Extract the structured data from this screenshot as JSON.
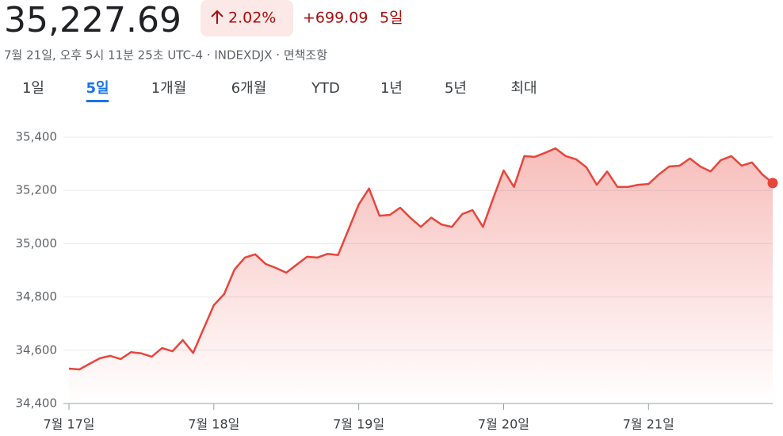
{
  "header": {
    "price": "35,227.69",
    "change_percent": "2.02%",
    "change_value": "+699.09",
    "period": "5일",
    "timestamp": "7월 21일, 오후 5시 11분 25초 UTC-4 · INDEXDJX · 면책조항"
  },
  "tabs": [
    "1일",
    "5일",
    "1개월",
    "6개월",
    "YTD",
    "1년",
    "5년",
    "최대"
  ],
  "selected_tab": 1,
  "chart_data": {
    "type": "line",
    "color": "#e8453c",
    "categories": [
      "7월 17일",
      null,
      null,
      null,
      null,
      null,
      null,
      null,
      null,
      null,
      null,
      null,
      null,
      null,
      "7월 18일",
      null,
      null,
      null,
      null,
      null,
      null,
      null,
      null,
      null,
      null,
      null,
      null,
      null,
      "7월 19일",
      null,
      null,
      null,
      null,
      null,
      null,
      null,
      null,
      null,
      null,
      null,
      null,
      null,
      "7월 20일",
      null,
      null,
      null,
      null,
      null,
      null,
      null,
      null,
      null,
      null,
      null,
      null,
      null,
      "7월 21일",
      null,
      null,
      null,
      null,
      null,
      null,
      null,
      null,
      null,
      null,
      null,
      null
    ],
    "values": [
      34531,
      34528,
      34549,
      34570,
      34579,
      34567,
      34593,
      34588,
      34576,
      34608,
      34596,
      34638,
      34590,
      34680,
      34769,
      34811,
      34903,
      34948,
      34960,
      34924,
      34909,
      34891,
      34921,
      34951,
      34948,
      34962,
      34957,
      35052,
      35147,
      35207,
      35105,
      35108,
      35135,
      35097,
      35063,
      35098,
      35072,
      35063,
      35111,
      35126,
      35063,
      35171,
      35275,
      35213,
      35329,
      35326,
      35341,
      35358,
      35329,
      35317,
      35287,
      35221,
      35271,
      35213,
      35213,
      35221,
      35224,
      35260,
      35290,
      35293,
      35320,
      35290,
      35271,
      35314,
      35329,
      35293,
      35305,
      35260,
      35227.69
    ],
    "ylim": [
      34400,
      35400
    ],
    "yticks": [
      {
        "value": 34400,
        "label": "34,400"
      },
      {
        "value": 34600,
        "label": "34,600"
      },
      {
        "value": 34800,
        "label": "34,800"
      },
      {
        "value": 35000,
        "label": "35,000"
      },
      {
        "value": 35200,
        "label": "35,200"
      },
      {
        "value": 35400,
        "label": "35,400"
      }
    ],
    "grid": true
  }
}
